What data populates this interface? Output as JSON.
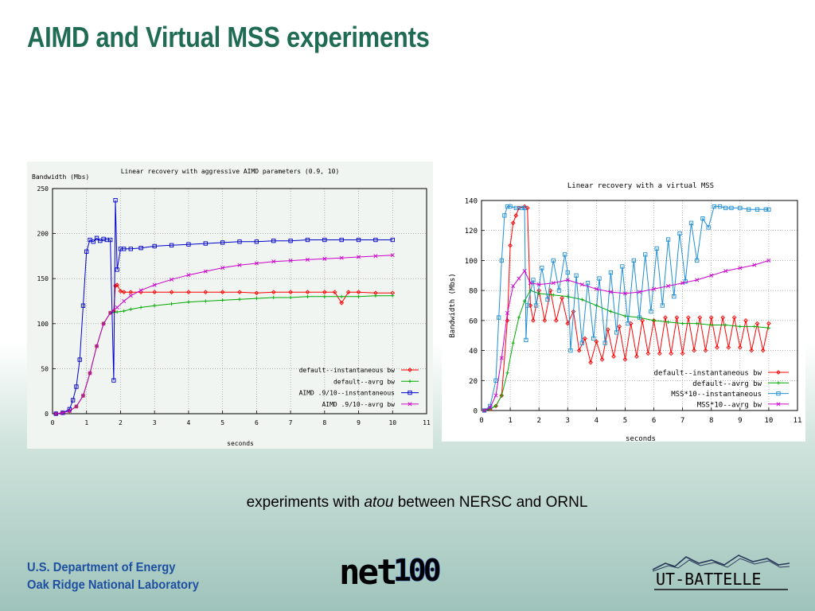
{
  "slide": {
    "title": "AIMD and Virtual MSS experiments",
    "caption_before": "experiments with ",
    "caption_italic": "atou",
    "caption_after": " between NERSC and ORNL",
    "footer_org_line1": "U.S. Department of Energy",
    "footer_org_line2": "Oak Ridge National Laboratory",
    "logo_net100": "net100",
    "logo_utbattelle": "UT-BATTELLE"
  },
  "chart_data": [
    {
      "type": "line",
      "title": "Linear recovery with aggressive AIMD parameters (0.9, 10)",
      "xlabel": "seconds",
      "ylabel": "Bandwidth (Mbs)",
      "xlim": [
        0,
        11
      ],
      "ylim": [
        0,
        250
      ],
      "xticks": [
        0,
        1,
        2,
        3,
        4,
        5,
        6,
        7,
        8,
        9,
        10,
        11
      ],
      "yticks": [
        0,
        50,
        100,
        150,
        200,
        250
      ],
      "grid": true,
      "legend_position": "bottom-right",
      "series": [
        {
          "name": "default--instantaneous bw",
          "color": "#ff0000",
          "marker": "diamond",
          "x": [
            0.1,
            0.3,
            0.5,
            0.7,
            0.9,
            1.1,
            1.3,
            1.5,
            1.7,
            1.8,
            1.85,
            1.9,
            2.0,
            2.1,
            2.3,
            2.6,
            3,
            3.5,
            4,
            4.5,
            5,
            5.5,
            6,
            6.5,
            7,
            7.5,
            8,
            8.3,
            8.5,
            8.7,
            9,
            9.5,
            10
          ],
          "y": [
            0,
            1,
            3,
            8,
            20,
            45,
            75,
            100,
            112,
            114,
            142,
            143,
            136,
            135,
            135,
            135,
            135,
            135,
            135,
            135,
            135,
            135,
            134,
            135,
            135,
            135,
            135,
            135,
            123,
            135,
            135,
            134,
            134
          ]
        },
        {
          "name": "default--avrg bw",
          "color": "#00aa00",
          "marker": "plus",
          "x": [
            0.1,
            0.3,
            0.5,
            0.7,
            0.9,
            1.1,
            1.3,
            1.5,
            1.7,
            1.9,
            2.1,
            2.3,
            2.6,
            3,
            3.5,
            4,
            4.5,
            5,
            5.5,
            6,
            6.5,
            7,
            7.5,
            8,
            8.5,
            9,
            9.5,
            10
          ],
          "y": [
            0,
            1,
            3,
            8,
            20,
            45,
            75,
            100,
            112,
            113,
            114,
            116,
            118,
            120,
            122,
            124,
            125,
            126,
            127,
            128,
            129,
            129,
            130,
            130,
            130,
            130,
            131,
            131
          ]
        },
        {
          "name": "AIMD .9/10--instantaneous",
          "color": "#0000cc",
          "marker": "square",
          "x": [
            0.1,
            0.3,
            0.5,
            0.6,
            0.7,
            0.8,
            0.9,
            1.0,
            1.1,
            1.2,
            1.3,
            1.4,
            1.5,
            1.6,
            1.7,
            1.8,
            1.85,
            1.9,
            2.0,
            2.1,
            2.3,
            2.6,
            3,
            3.5,
            4,
            4.5,
            5,
            5.5,
            6,
            6.5,
            7,
            7.5,
            8,
            8.5,
            9,
            9.5,
            10
          ],
          "y": [
            0,
            1,
            5,
            15,
            30,
            60,
            120,
            180,
            193,
            191,
            195,
            192,
            194,
            193,
            193,
            37,
            237,
            160,
            183,
            183,
            183,
            184,
            186,
            187,
            188,
            189,
            190,
            191,
            191,
            192,
            192,
            193,
            193,
            193,
            193,
            193,
            193
          ]
        },
        {
          "name": "AIMD .9/10--avrg bw",
          "color": "#cc00cc",
          "marker": "x",
          "x": [
            0.1,
            0.3,
            0.5,
            0.7,
            0.9,
            1.1,
            1.3,
            1.5,
            1.7,
            1.9,
            2.1,
            2.3,
            2.6,
            3,
            3.5,
            4,
            4.5,
            5,
            5.5,
            6,
            6.5,
            7,
            7.5,
            8,
            8.5,
            9,
            9.5,
            10
          ],
          "y": [
            0,
            1,
            3,
            8,
            20,
            45,
            75,
            100,
            112,
            118,
            125,
            131,
            137,
            143,
            149,
            154,
            158,
            162,
            165,
            167,
            169,
            170,
            171,
            172,
            173,
            174,
            175,
            176
          ]
        }
      ]
    },
    {
      "type": "line",
      "title": "Linear recovery with a virtual MSS",
      "xlabel": "seconds",
      "ylabel": "Bandwidth (Mbs)",
      "xlim": [
        0,
        11
      ],
      "ylim": [
        0,
        140
      ],
      "xticks": [
        0,
        1,
        2,
        3,
        4,
        5,
        6,
        7,
        8,
        9,
        10,
        11
      ],
      "yticks": [
        0,
        20,
        40,
        60,
        80,
        100,
        120,
        140
      ],
      "grid": true,
      "legend_position": "bottom-right",
      "series": [
        {
          "name": "default--instantaneous bw",
          "color": "#ff0000",
          "marker": "diamond",
          "x": [
            0.1,
            0.3,
            0.5,
            0.7,
            0.9,
            1.0,
            1.1,
            1.2,
            1.3,
            1.5,
            1.6,
            1.7,
            1.8,
            2.0,
            2.2,
            2.4,
            2.6,
            2.8,
            3.0,
            3.2,
            3.4,
            3.6,
            3.8,
            4.0,
            4.2,
            4.4,
            4.6,
            4.8,
            5.0,
            5.2,
            5.4,
            5.6,
            5.8,
            6.0,
            6.2,
            6.4,
            6.6,
            6.8,
            7.0,
            7.2,
            7.4,
            7.6,
            7.8,
            8.0,
            8.2,
            8.4,
            8.6,
            8.8,
            9.0,
            9.2,
            9.4,
            9.6,
            9.8,
            10.0
          ],
          "y": [
            0,
            1,
            3,
            10,
            60,
            110,
            125,
            130,
            135,
            136,
            135,
            70,
            60,
            80,
            60,
            80,
            60,
            75,
            58,
            66,
            40,
            48,
            32,
            46,
            34,
            54,
            36,
            56,
            34,
            58,
            36,
            60,
            38,
            60,
            38,
            62,
            38,
            62,
            38,
            62,
            40,
            62,
            40,
            62,
            42,
            62,
            42,
            62,
            42,
            60,
            40,
            58,
            40,
            58
          ]
        },
        {
          "name": "default--avrg bw",
          "color": "#00aa00",
          "marker": "plus",
          "x": [
            0.1,
            0.3,
            0.5,
            0.7,
            0.9,
            1.1,
            1.3,
            1.5,
            1.7,
            2.0,
            2.5,
            3.0,
            3.5,
            4.0,
            4.5,
            5.0,
            5.5,
            6.0,
            6.5,
            7.0,
            7.5,
            8.0,
            8.5,
            9.0,
            9.5,
            10.0
          ],
          "y": [
            0,
            1,
            3,
            10,
            25,
            45,
            62,
            73,
            80,
            78,
            77,
            76,
            74,
            70,
            66,
            63,
            62,
            60,
            59,
            58,
            58,
            57,
            57,
            56,
            56,
            55
          ]
        },
        {
          "name": "MSS*10--instantaneous",
          "color": "#1f8fd6",
          "marker": "square",
          "x": [
            0.1,
            0.3,
            0.5,
            0.6,
            0.7,
            0.8,
            0.9,
            1.0,
            1.2,
            1.4,
            1.5,
            1.55,
            1.6,
            1.8,
            1.9,
            2.1,
            2.3,
            2.5,
            2.7,
            2.9,
            3.0,
            3.1,
            3.3,
            3.5,
            3.7,
            3.9,
            4.1,
            4.3,
            4.5,
            4.7,
            4.9,
            5.1,
            5.3,
            5.5,
            5.7,
            5.9,
            6.1,
            6.3,
            6.5,
            6.7,
            6.9,
            7.1,
            7.3,
            7.5,
            7.7,
            7.9,
            8.1,
            8.3,
            8.5,
            8.7,
            9.0,
            9.3,
            9.6,
            9.9,
            10.0
          ],
          "y": [
            0,
            3,
            20,
            62,
            100,
            130,
            136,
            136,
            135,
            135,
            135,
            47,
            70,
            87,
            70,
            95,
            74,
            100,
            80,
            104,
            92,
            40,
            90,
            45,
            85,
            48,
            88,
            45,
            92,
            52,
            96,
            58,
            100,
            62,
            104,
            66,
            108,
            70,
            114,
            76,
            118,
            86,
            125,
            100,
            128,
            122,
            136,
            136,
            135,
            135,
            135,
            134,
            134,
            134,
            134
          ]
        },
        {
          "name": "MSS*10--avrg bw",
          "color": "#cc00cc",
          "marker": "x",
          "x": [
            0.1,
            0.3,
            0.5,
            0.7,
            0.9,
            1.1,
            1.3,
            1.5,
            1.7,
            2.0,
            2.5,
            3.0,
            3.5,
            4.0,
            4.5,
            5.0,
            5.5,
            6.0,
            6.5,
            7.0,
            7.5,
            8.0,
            8.5,
            9.0,
            9.5,
            10.0
          ],
          "y": [
            0,
            2,
            10,
            35,
            65,
            83,
            88,
            93,
            85,
            84,
            85,
            87,
            84,
            81,
            79,
            78,
            79,
            81,
            83,
            85,
            87,
            90,
            93,
            95,
            97,
            100
          ]
        }
      ]
    }
  ]
}
